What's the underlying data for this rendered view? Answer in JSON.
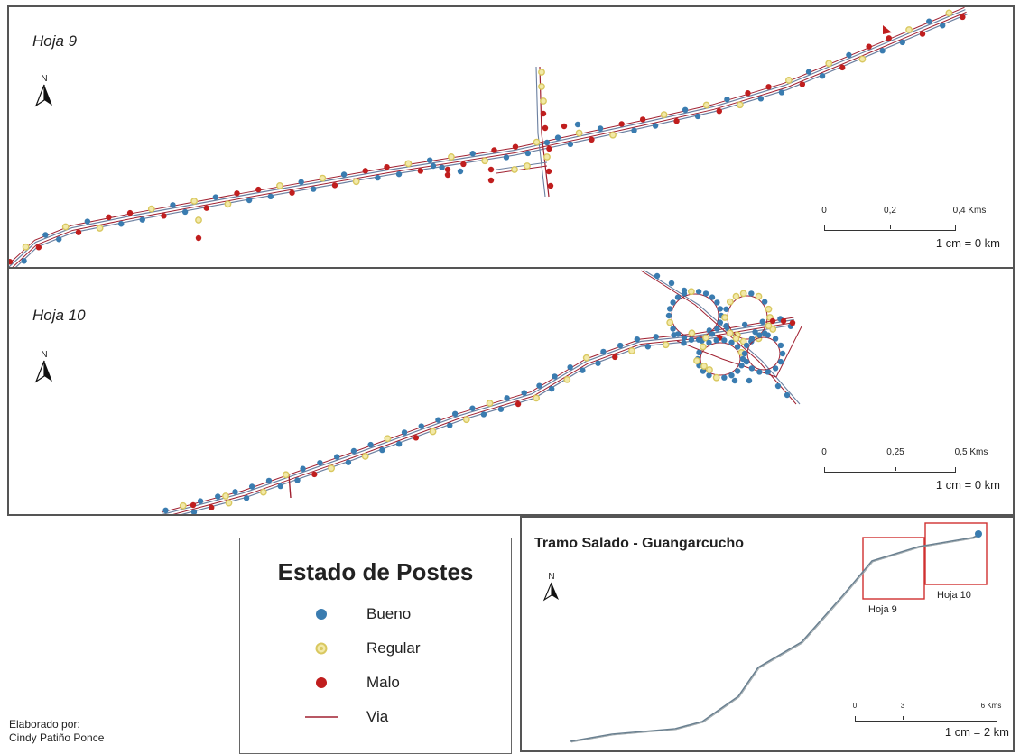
{
  "sheets": [
    {
      "label": "Hoja 9",
      "north": "N",
      "scale": {
        "ticks": [
          "0",
          "0,2",
          "0,4 Kms"
        ],
        "ratio": "1 cm = 0 km"
      }
    },
    {
      "label": "Hoja 10",
      "north": "N",
      "scale": {
        "ticks": [
          "0",
          "0,25",
          "0,5 Kms"
        ],
        "ratio": "1 cm = 0 km"
      }
    }
  ],
  "legend": {
    "title": "Estado de Postes",
    "items": [
      {
        "label": "Bueno",
        "symbol": "dot",
        "color": "#3a7cb0"
      },
      {
        "label": "Regular",
        "symbol": "ring",
        "color": "#d9c860"
      },
      {
        "label": "Malo",
        "symbol": "dot",
        "color": "#c01e1e"
      },
      {
        "label": "Via",
        "symbol": "line",
        "color": "#a02030"
      }
    ]
  },
  "credit": {
    "line1": "Elaborado por:",
    "line2": "Cindy Patiño Ponce"
  },
  "inset": {
    "title": "Tramo Salado - Guangarcucho",
    "north": "N",
    "boxes": [
      "Hoja 9",
      "Hoja 10"
    ],
    "scale": {
      "ticks": [
        "0",
        "3",
        "6 Kms"
      ],
      "ratio": "1 cm = 2 km"
    }
  },
  "colors": {
    "bueno": "#3a7cb0",
    "regular": "#d9c860",
    "malo": "#c01e1e",
    "via": "#a02030",
    "road_outline": "#6a7fa0"
  }
}
